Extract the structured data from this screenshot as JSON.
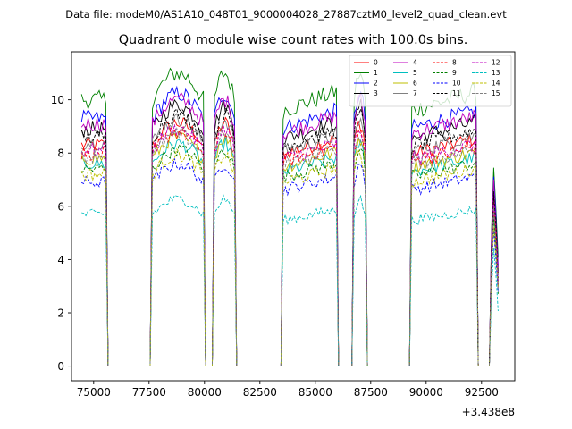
{
  "chart_data": {
    "type": "line",
    "suptitle": "Data file: modeM0/AS1A10_048T01_9000004028_27887cztM0_level2_quad_clean.evt",
    "title": "Quadrant 0 module wise count rates with 100.0s bins.",
    "xlabel": "",
    "ylabel": "",
    "x_offset_label": "+3.438e8",
    "xlim": [
      74000,
      94000
    ],
    "ylim": [
      -0.55,
      11.8
    ],
    "xticks": [
      75000,
      77500,
      80000,
      82500,
      85000,
      87500,
      90000,
      92500
    ],
    "xtick_labels": [
      "75000",
      "77500",
      "80000",
      "82500",
      "85000",
      "87500",
      "90000",
      "92500"
    ],
    "yticks": [
      0,
      2,
      4,
      6,
      8,
      10
    ],
    "ytick_labels": [
      "0",
      "2",
      "4",
      "6",
      "8",
      "10"
    ],
    "legend_location": "upper right",
    "legend_columns": 4,
    "segments": [
      {
        "x": [
          74450,
          75550
        ],
        "shape": "flat"
      },
      {
        "x": [
          77650,
          79950
        ],
        "shape": "hump"
      },
      {
        "x": [
          80450,
          81350
        ],
        "shape": "hump"
      },
      {
        "x": [
          83550,
          85950
        ],
        "shape": "rise"
      },
      {
        "x": [
          86750,
          87250
        ],
        "shape": "hump"
      },
      {
        "x": [
          89350,
          92250
        ],
        "shape": "rise"
      },
      {
        "x": [
          92950,
          93250
        ],
        "shape": "tail"
      }
    ],
    "series": [
      {
        "name": "0",
        "color": "#ff0000",
        "dash": "solid",
        "level": 8.3
      },
      {
        "name": "1",
        "color": "#008000",
        "dash": "solid",
        "level": 10.0
      },
      {
        "name": "2",
        "color": "#0000ff",
        "dash": "solid",
        "level": 9.3
      },
      {
        "name": "3",
        "color": "#000000",
        "dash": "solid",
        "level": 8.9
      },
      {
        "name": "4",
        "color": "#bf00bf",
        "dash": "solid",
        "level": 9.1
      },
      {
        "name": "5",
        "color": "#00bfbf",
        "dash": "solid",
        "level": 7.6
      },
      {
        "name": "6",
        "color": "#bfbf00",
        "dash": "solid",
        "level": 7.8
      },
      {
        "name": "7",
        "color": "#808080",
        "dash": "solid",
        "level": 8.4
      },
      {
        "name": "8",
        "color": "#ff0000",
        "dash": "dashed",
        "level": 8.0
      },
      {
        "name": "9",
        "color": "#008000",
        "dash": "dashed",
        "level": 7.4
      },
      {
        "name": "10",
        "color": "#0000ff",
        "dash": "dashed",
        "level": 6.9
      },
      {
        "name": "11",
        "color": "#000000",
        "dash": "dashed",
        "level": 8.6
      },
      {
        "name": "12",
        "color": "#bf00bf",
        "dash": "dashed",
        "level": 8.1
      },
      {
        "name": "13",
        "color": "#00bfbf",
        "dash": "dashed",
        "level": 5.7
      },
      {
        "name": "14",
        "color": "#bfbf00",
        "dash": "dashed",
        "level": 7.2
      },
      {
        "name": "15",
        "color": "#808080",
        "dash": "dashed",
        "level": 7.9
      }
    ]
  }
}
